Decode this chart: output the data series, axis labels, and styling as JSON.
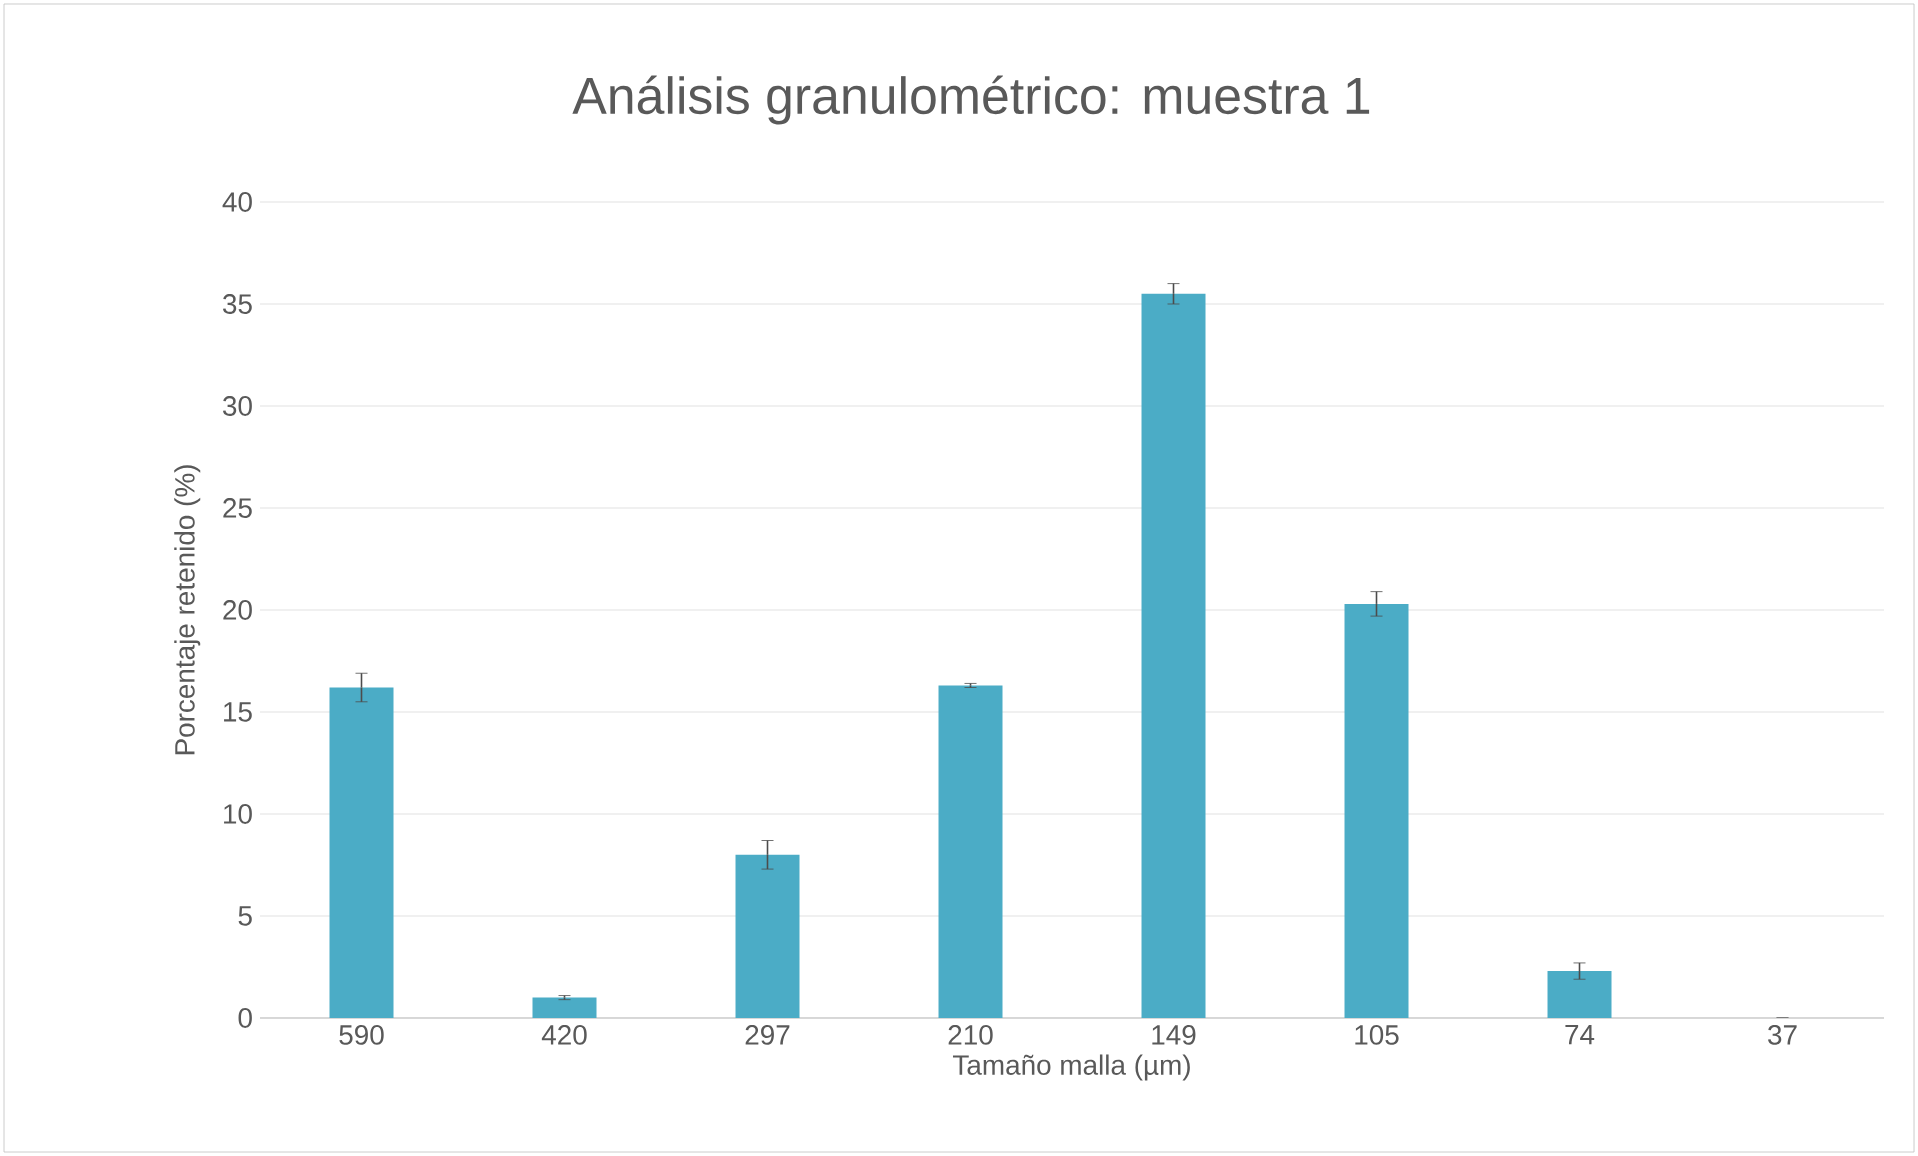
{
  "chart_data": {
    "type": "bar",
    "title": "Análisis granulométrico: muestra 1",
    "xlabel": "Tamaño malla (µm)",
    "ylabel": "Porcentaje retenido (%)",
    "categories": [
      "590",
      "420",
      "297",
      "210",
      "149",
      "105",
      "74",
      "37"
    ],
    "values": [
      16.2,
      1.0,
      8.0,
      16.3,
      35.5,
      20.3,
      2.3,
      0
    ],
    "errors": [
      0.7,
      0.1,
      0.7,
      0.1,
      0.5,
      0.6,
      0.4,
      null
    ],
    "color": "#4bacc6",
    "ylim": [
      0,
      40
    ],
    "yticks": [
      0,
      5,
      10,
      15,
      20,
      25,
      30,
      35,
      40
    ],
    "grid": "y"
  }
}
